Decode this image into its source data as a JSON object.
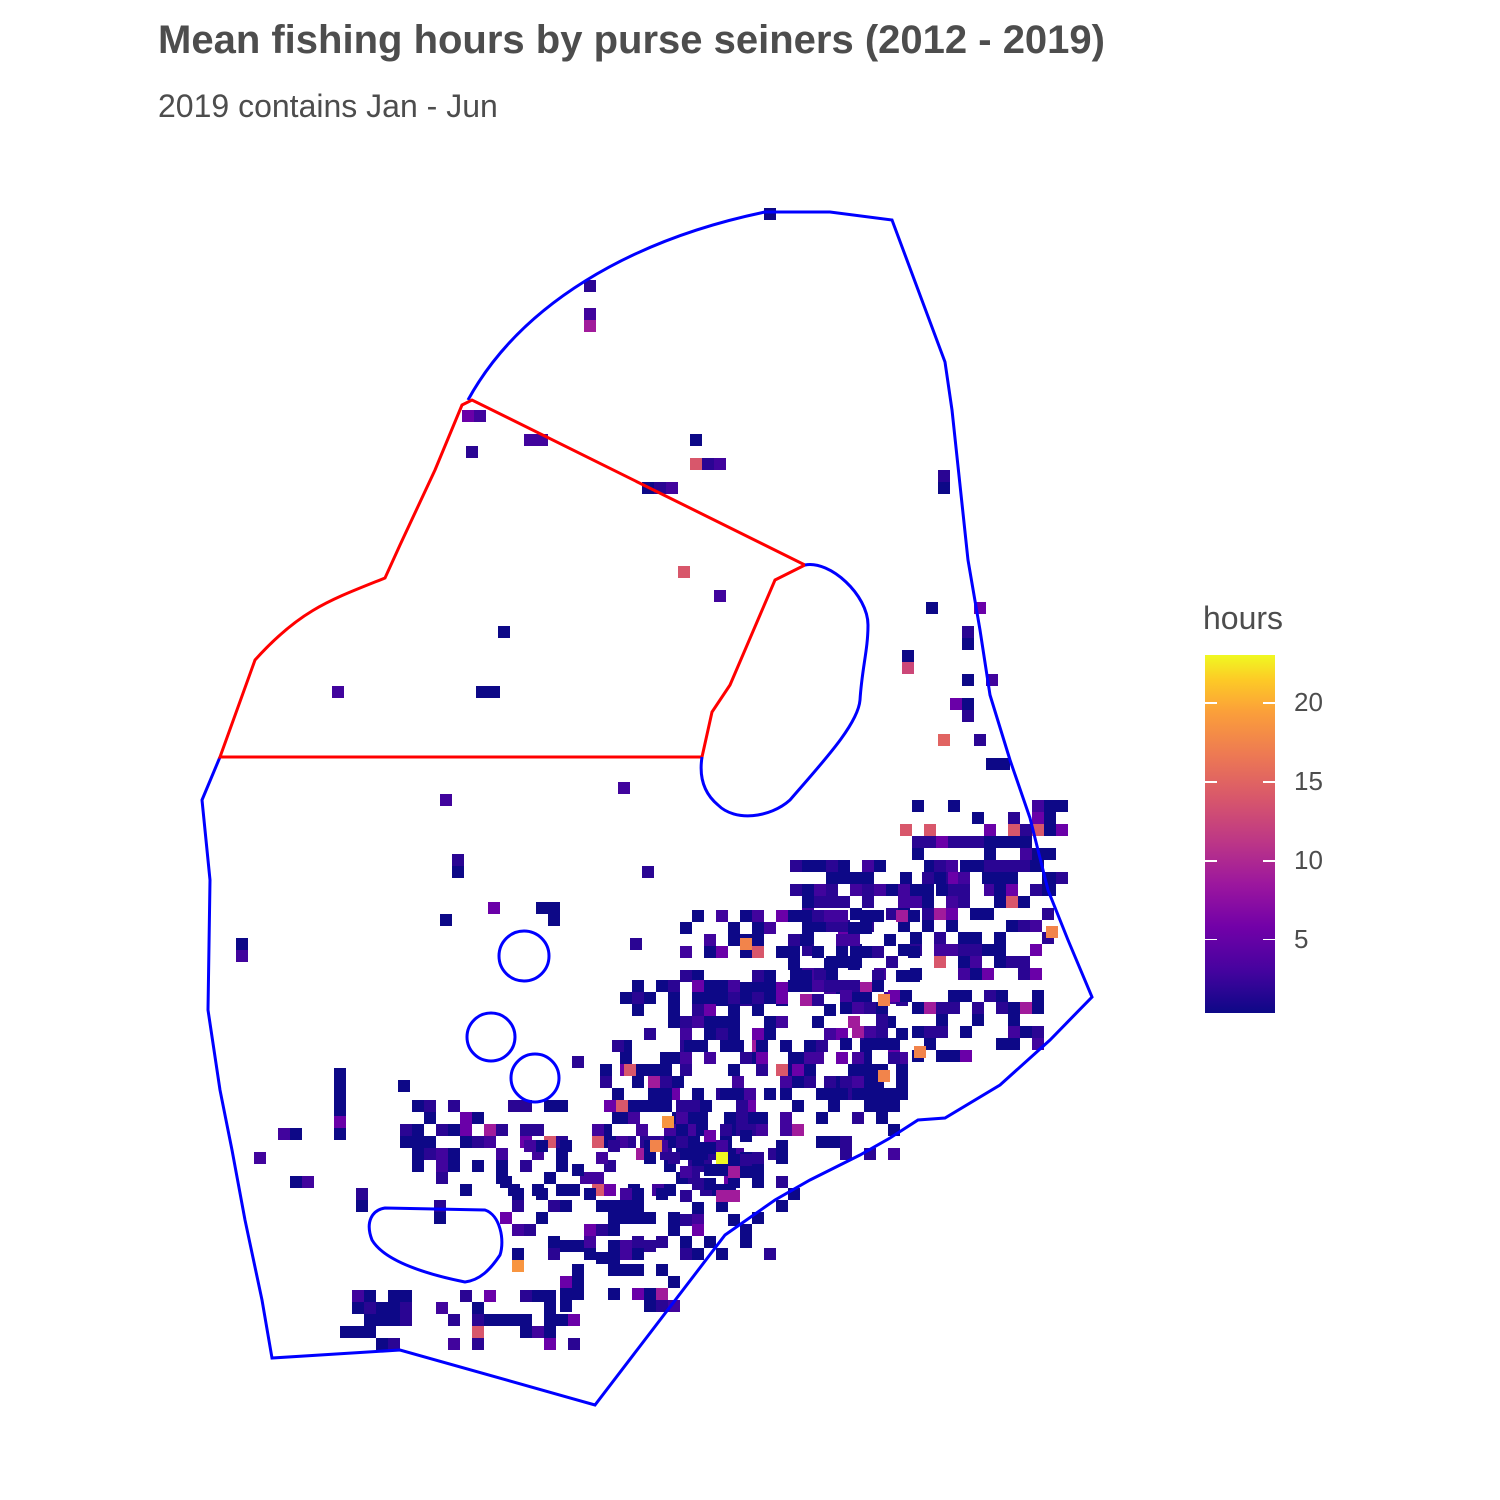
{
  "title": "Mean fishing hours by purse seiners (2012 - 2019)",
  "subtitle": "2019 contains Jan - Jun",
  "legend": {
    "title": "hours",
    "ticks": [
      "5",
      "10",
      "15",
      "20"
    ],
    "tick_values": [
      5,
      10,
      15,
      20
    ],
    "range": [
      0.3,
      23
    ],
    "palette": "plasma"
  },
  "colors": {
    "eez_boundary": "#0000ff",
    "zone_boundary": "#ff0000",
    "text": "#4d4d4d"
  }
}
